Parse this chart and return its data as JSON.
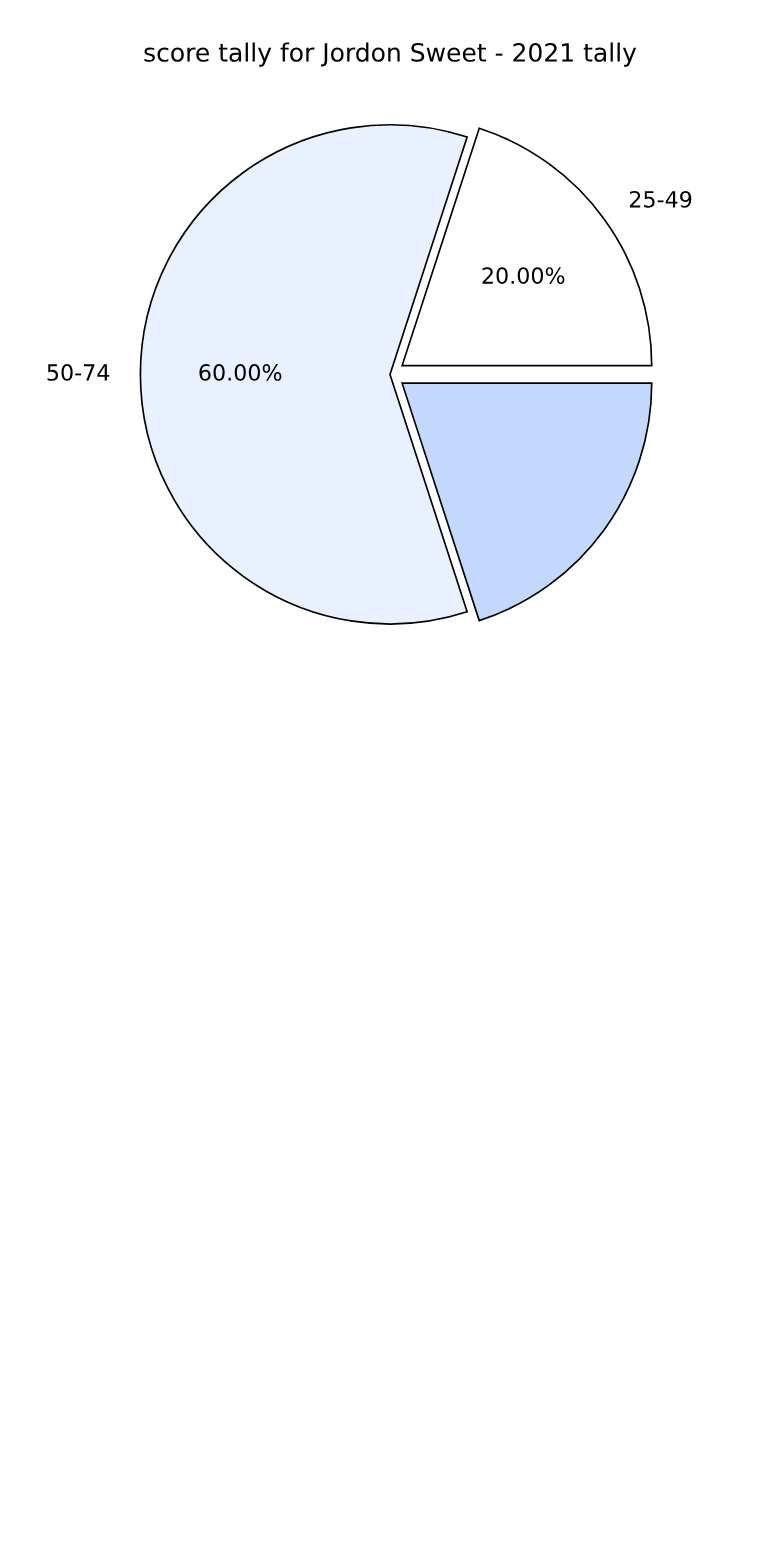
{
  "chart_data": {
    "type": "pie",
    "title": "score tally for Jordon Sweet - 2021 tally",
    "categories": [
      "25-49",
      "50-74",
      null
    ],
    "values": [
      20,
      60,
      20
    ],
    "colors": [
      "#ffffff",
      "#eaf1fe",
      "#c4d8fe"
    ],
    "value_labels": [
      "20.00%",
      "60.00%",
      null
    ]
  }
}
